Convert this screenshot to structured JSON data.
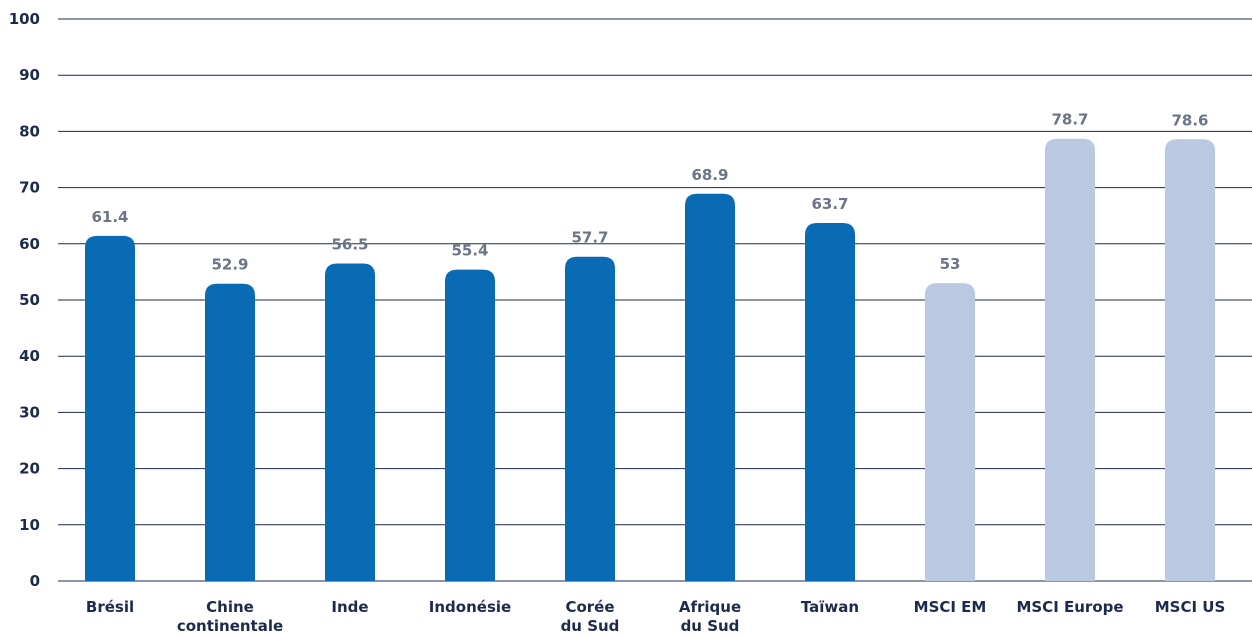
{
  "chart_data": {
    "type": "bar",
    "title": "",
    "xlabel": "",
    "ylabel": "",
    "ylim": [
      0,
      100
    ],
    "yticks": [
      0,
      10,
      20,
      30,
      40,
      50,
      60,
      70,
      80,
      90,
      100
    ],
    "grid": true,
    "categories": [
      [
        "Brésil"
      ],
      [
        "Chine",
        "continentale"
      ],
      [
        "Inde"
      ],
      [
        "Indonésie"
      ],
      [
        "Corée",
        "du Sud"
      ],
      [
        "Afrique",
        "du Sud"
      ],
      [
        "Taïwan"
      ],
      [
        "MSCI EM"
      ],
      [
        "MSCI Europe"
      ],
      [
        "MSCI US"
      ]
    ],
    "values": [
      61.4,
      52.9,
      56.5,
      55.4,
      57.7,
      68.9,
      63.7,
      53,
      78.7,
      78.6
    ],
    "value_labels": [
      "61.4",
      "52.9",
      "56.5",
      "55.4",
      "57.7",
      "68.9",
      "63.7",
      "53",
      "78.7",
      "78.6"
    ],
    "bar_colors": [
      "#0a6bb5",
      "#0a6bb5",
      "#0a6bb5",
      "#0a6bb5",
      "#0a6bb5",
      "#0a6bb5",
      "#0a6bb5",
      "#b8c9e1",
      "#b8c9e1",
      "#b8c9e1"
    ]
  }
}
